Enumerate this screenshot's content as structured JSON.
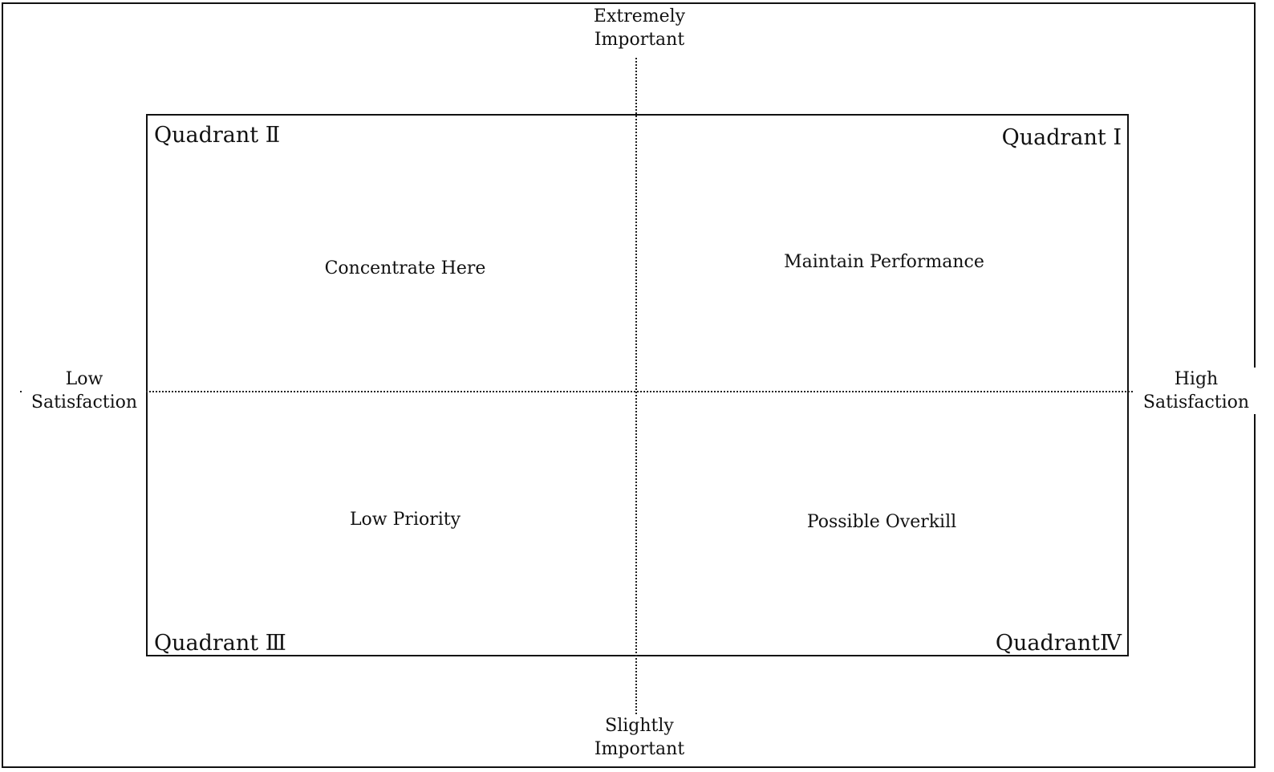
{
  "axes": {
    "top": [
      "Extremely",
      "Important"
    ],
    "bottom": [
      "Slightly",
      "Important"
    ],
    "left": [
      "Low",
      "Satisfaction"
    ],
    "right": [
      "High",
      "Satisfaction"
    ]
  },
  "quadrants": {
    "q1": {
      "name": "Quadrant Ⅰ",
      "zone": "Maintain Performance"
    },
    "q2": {
      "name": "Quadrant Ⅱ",
      "zone": "Concentrate Here"
    },
    "q3": {
      "name": "Quadrant Ⅲ",
      "zone": "Low Priority"
    },
    "q4": {
      "name": "QuadrantⅣ",
      "zone": "Possible Overkill"
    }
  },
  "colors": {
    "line": "#111111",
    "background": "#ffffff"
  }
}
